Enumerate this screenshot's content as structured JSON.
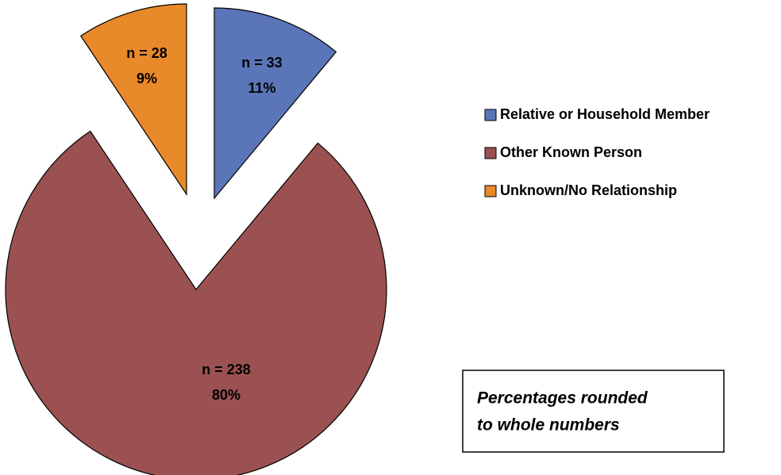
{
  "chart_data": {
    "type": "pie",
    "categories": [
      "Relative or Household Member",
      "Other Known Person",
      "Unknown/No Relationship"
    ],
    "values": [
      33,
      238,
      28
    ],
    "value_labels": [
      "n = 33",
      "n = 238",
      "n = 28"
    ],
    "percentages": [
      11,
      80,
      9
    ],
    "percentage_labels": [
      "11%",
      "80%",
      "9%"
    ],
    "colors": [
      "#5b76b8",
      "#9b5151",
      "#e8892a"
    ],
    "legend": "right",
    "annotation": [
      "Percentages rounded",
      "to whole numbers"
    ]
  }
}
